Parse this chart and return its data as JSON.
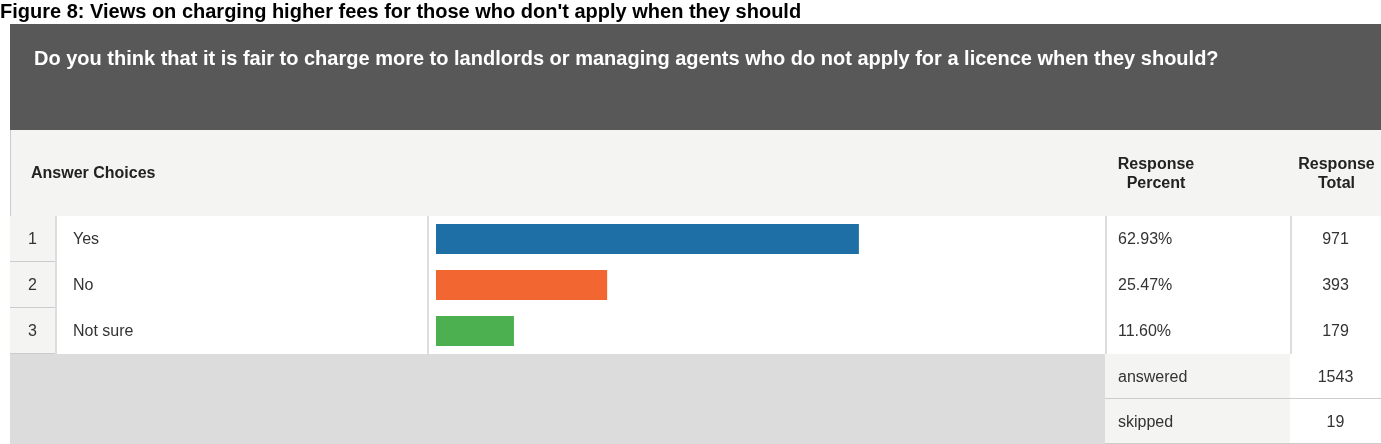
{
  "chart_data": {
    "type": "bar",
    "orientation": "horizontal",
    "title": "Figure 8: Views on charging higher fees for those who don't apply when they should",
    "subtitle": "Do you think that it is fair to charge more to landlords or managing agents who do not apply for a licence when they should?",
    "categories": [
      "Yes",
      "No",
      "Not sure"
    ],
    "values": [
      62.93,
      25.47,
      11.6
    ],
    "colors": [
      "#1d6fa5",
      "#f26632",
      "#4caf50"
    ],
    "xlim": [
      0,
      100
    ],
    "value_labels": [
      "62.93%",
      "25.47%",
      "11.60%"
    ],
    "annotations": [
      "Answer Choices",
      "Response Percent",
      "Response Total",
      "1",
      "971",
      "2",
      "393",
      "3",
      "179",
      "answered",
      "1543",
      "skipped",
      "19"
    ]
  }
}
